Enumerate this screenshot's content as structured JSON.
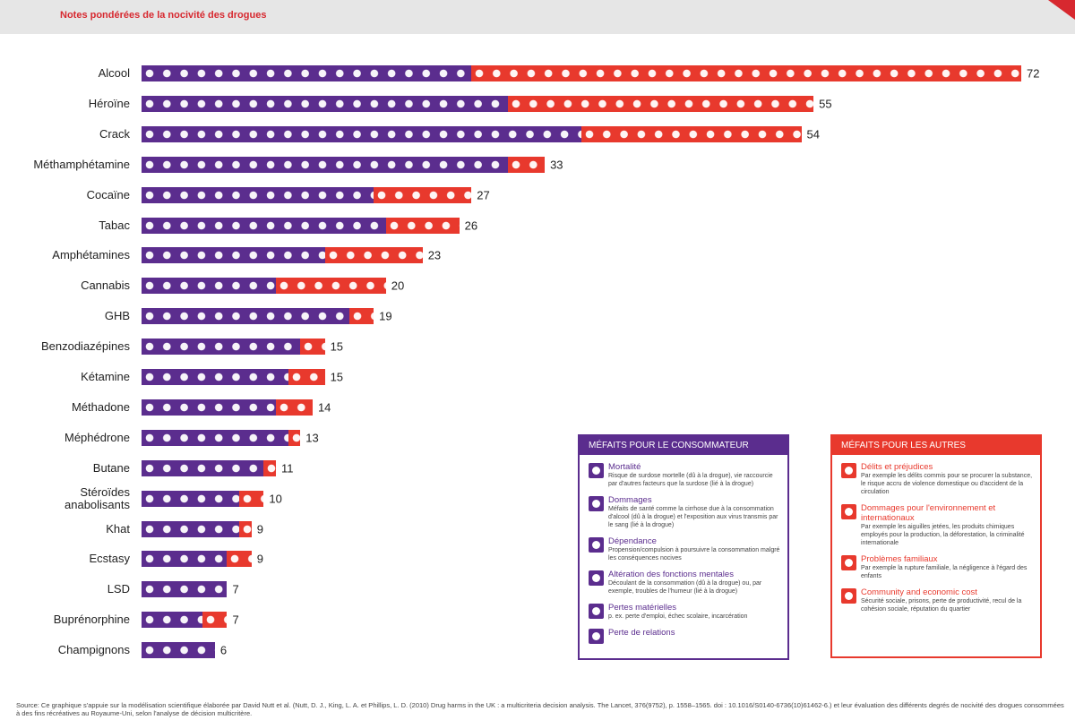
{
  "header": {
    "title": "Notes pondérées de la nocivité des drogues"
  },
  "chart_data": {
    "type": "bar",
    "categories": [
      "Alcool",
      "Héroïne",
      "Crack",
      "Méthamphétamine",
      "Cocaïne",
      "Tabac",
      "Amphétamines",
      "Cannabis",
      "GHB",
      "Benzodiazépines",
      "Kétamine",
      "Méthadone",
      "Méphédrone",
      "Butane",
      "Stéroïdes anabolisants",
      "Khat",
      "Ecstasy",
      "LSD",
      "Buprénorphine",
      "Champignons"
    ],
    "series": [
      {
        "name": "MÉFAITS POUR LE CONSOMMATEUR",
        "color": "#5b2d8e",
        "values": [
          27,
          30,
          36,
          30,
          19,
          20,
          15,
          11,
          17,
          13,
          12,
          11,
          12,
          10,
          8,
          8,
          7,
          7,
          5,
          6
        ]
      },
      {
        "name": "MÉFAITS POUR LES AUTRES",
        "color": "#e8392d",
        "values": [
          45,
          25,
          18,
          3,
          8,
          6,
          8,
          9,
          2,
          2,
          3,
          3,
          1,
          1,
          2,
          1,
          2,
          0,
          2,
          0
        ]
      }
    ],
    "totals": [
      72,
      55,
      54,
      33,
      27,
      26,
      23,
      20,
      19,
      15,
      15,
      14,
      13,
      11,
      10,
      9,
      9,
      7,
      7,
      6
    ]
  },
  "legend_user": {
    "items": [
      {
        "name": "Mortalité",
        "desc": "Risque de surdose mortelle (dû à la drogue), vie raccourcie par d'autres facteurs que la surdose (lié à la drogue)"
      },
      {
        "name": "Dommages",
        "desc": "Méfaits de santé comme la cirrhose due à la consommation d'alcool (dû à la drogue) et l'exposition aux virus transmis par le sang (lié à la drogue)"
      },
      {
        "name": "Dépendance",
        "desc": "Propension/compulsion à poursuivre la consommation malgré les conséquences nocives"
      },
      {
        "name": "Altération des fonctions mentales",
        "desc": "Découlant de la consommation (dû à la drogue) ou, par exemple, troubles de l'humeur (lié à la drogue)"
      },
      {
        "name": "Pertes matérielles",
        "desc": "p. ex. perte d'emploi, échec scolaire, incarcération"
      },
      {
        "name": "Perte de relations",
        "desc": null
      }
    ]
  },
  "legend_others": {
    "items": [
      {
        "name": "Délits et préjudices",
        "desc": "Par exemple les délits commis pour se procurer la substance, le risque accru de violence domestique ou d'accident de la circulation"
      },
      {
        "name": "Dommages pour l'environnement et internationaux",
        "desc": "Par exemple les aiguilles jetées, les produits chimiques employés pour la production, la déforestation, la criminalité internationale"
      },
      {
        "name": "Problèmes familiaux",
        "desc": "Par exemple la rupture familiale, la négligence à l'égard des enfants"
      },
      {
        "name": "Community and economic cost",
        "desc": "Sécurité sociale, prisons, perte de productivité, recul de la cohésion sociale, réputation du quartier"
      }
    ]
  },
  "source": "Source: Ce graphique s'appuie sur la modélisation scientifique élaborée par David Nutt et al. (Nutt, D. J., King, L. A. et Phillips, L. D. (2010) Drug harms in the UK : a multicriteria decision analysis. The Lancet, 376(9752), p. 1558–1565. doi : 10.1016/S0140-6736(10)61462-6.) et leur évaluation des différents degrés de nocivité des drogues consommées à des fins récréatives au Royaume-Uni, selon l'analyse de décision multicritère."
}
